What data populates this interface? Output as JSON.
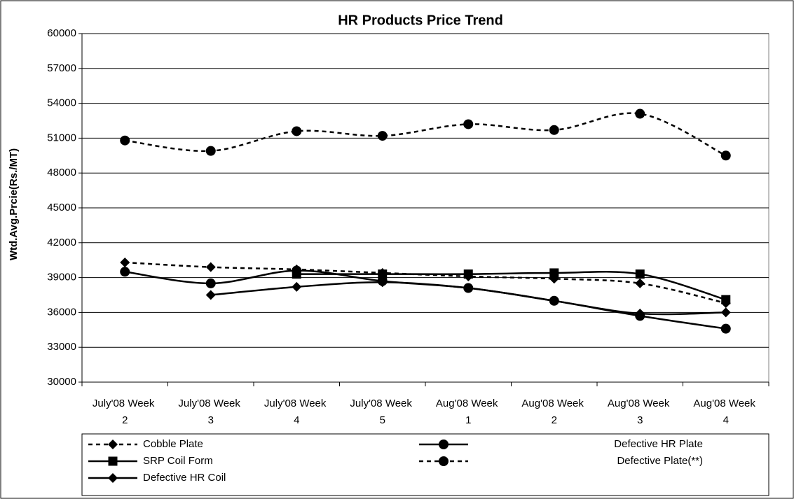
{
  "chart_data": {
    "type": "line",
    "title": "HR Products Price Trend",
    "y_label": "Wtd.Avg.Prcie(Rs./MT)",
    "categories": [
      "July'08 Week 2",
      "July'08 Week 3",
      "July'08 Week 4",
      "July'08 Week 5",
      "Aug'08 Week 1",
      "Aug'08 Week 2",
      "Aug'08 Week 3",
      "Aug'08 Week 4"
    ],
    "ylim": [
      30000,
      60000
    ],
    "yticks": [
      30000,
      33000,
      36000,
      39000,
      42000,
      45000,
      48000,
      51000,
      54000,
      57000,
      60000
    ],
    "grid": true,
    "legend": "bottom",
    "series": [
      {
        "name": "Cobble Plate",
        "color": "#000000",
        "dash": true,
        "marker": "diamond",
        "values": [
          40300,
          39900,
          39700,
          39400,
          39100,
          38900,
          38500,
          36800
        ]
      },
      {
        "name": "Defective HR Plate",
        "color": "#000000",
        "dash": false,
        "marker": "circle",
        "values": [
          39500,
          38500,
          39600,
          38700,
          38100,
          37000,
          35700,
          34600
        ]
      },
      {
        "name": "SRP Coil Form",
        "color": "#000000",
        "dash": false,
        "marker": "square",
        "values": [
          null,
          null,
          39300,
          39300,
          39300,
          39400,
          39300,
          37100
        ]
      },
      {
        "name": "Defective Plate(**)",
        "color": "#000000",
        "dash": true,
        "marker": "circle",
        "values": [
          50800,
          49900,
          51600,
          51200,
          52200,
          51700,
          53100,
          49500
        ]
      },
      {
        "name": "Defective HR Coil",
        "color": "#000000",
        "dash": false,
        "marker": "diamond",
        "values": [
          null,
          37500,
          38200,
          38600,
          38100,
          37000,
          35900,
          36000
        ]
      }
    ]
  }
}
